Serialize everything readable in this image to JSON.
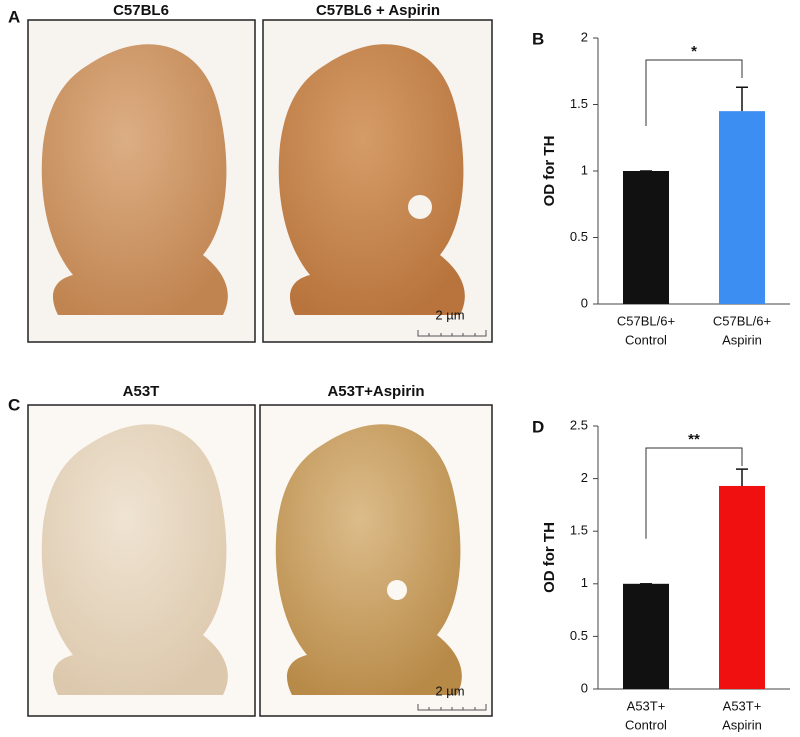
{
  "panels": [
    {
      "letter": "A",
      "images": [
        {
          "caption": "C57BL6"
        },
        {
          "caption": "C57BL6 + Aspirin",
          "scale_bar": "2 µm"
        }
      ]
    },
    {
      "letter": "C",
      "images": [
        {
          "caption": "A53T"
        },
        {
          "caption": "A53T+Aspirin",
          "scale_bar": "2 µm"
        }
      ]
    }
  ],
  "chart_data": [
    {
      "type": "bar",
      "label": "B",
      "y_label": "OD for TH",
      "categories": [
        [
          "C57BL/6+",
          "Control"
        ],
        [
          "C57BL/6+",
          "Aspirin"
        ]
      ],
      "values": [
        1,
        1.45
      ],
      "errors": [
        0,
        0.18
      ],
      "colors": [
        "#111111",
        "#3d8ef2"
      ],
      "ylim": [
        0,
        2
      ],
      "yticks": [
        0,
        0.5,
        1,
        1.5,
        2
      ],
      "annotation": "*"
    },
    {
      "type": "bar",
      "label": "D",
      "y_label": "OD for TH",
      "categories": [
        [
          "A53T+",
          "Control"
        ],
        [
          "A53T+",
          "Aspirin"
        ]
      ],
      "values": [
        1,
        1.93
      ],
      "errors": [
        0,
        0.16
      ],
      "colors": [
        "#111111",
        "#f01010"
      ],
      "ylim": [
        0,
        2.5
      ],
      "yticks": [
        0,
        0.5,
        1,
        1.5,
        2,
        2.5
      ],
      "annotation": "**"
    }
  ]
}
